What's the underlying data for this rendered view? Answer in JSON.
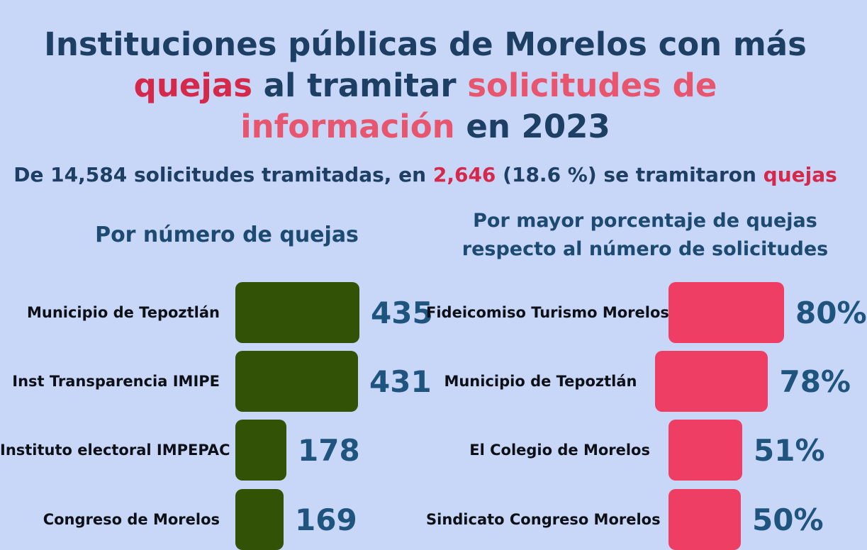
{
  "title": {
    "line1": "Instituciones públicas de Morelos con más",
    "line2_highlight": "quejas",
    "line2_mid": " al tramitar ",
    "line2_rose": "solicitudes de",
    "line3_rose": "información",
    "line3_end": " en 2023"
  },
  "subtitle": {
    "part1": "De 14,584 solicitudes tramitadas, en ",
    "highlight1": "2,646",
    "part2": " (18.6 %) se tramitaron ",
    "highlight2": "quejas"
  },
  "colors": {
    "background": "#c8d6f7",
    "title_navy": "#1d3f63",
    "title_crimson": "#d5294b",
    "title_rose": "#e8556e",
    "chart_header_navy": "#1d4a70",
    "value_label_blue": "#1e547e",
    "category_label_dark": "#0d1117",
    "green_bar": "#325206",
    "pink_bar": "#ee3e63"
  },
  "chart_data": [
    {
      "type": "bar",
      "orientation": "horizontal",
      "title": "Por número de quejas",
      "categories": [
        "Municipio de Tepoztlán",
        "Inst Transparencia IMIPE",
        "Instituto electoral IMPEPAC",
        "Congreso de Morelos"
      ],
      "values": [
        435,
        431,
        178,
        169
      ],
      "value_labels": [
        "435",
        "431",
        "178",
        "169"
      ],
      "bar_color": "#325206",
      "value_axis_max": 435,
      "grid": false,
      "legend": false
    },
    {
      "type": "bar",
      "orientation": "horizontal",
      "title": "Por mayor porcentaje de quejas respecto al número de solicitudes",
      "title_lines": [
        "Por  mayor porcentaje de quejas",
        "respecto al número de solicitudes"
      ],
      "categories": [
        "Fideicomiso Turismo Morelos",
        "Municipio de Tepoztlán",
        "El Colegio de Morelos",
        "Sindicato Congreso Morelos"
      ],
      "values": [
        80,
        78,
        51,
        50
      ],
      "value_labels": [
        "80%",
        "78%",
        "51%",
        "50%"
      ],
      "unit": "%",
      "bar_color": "#ee3e63",
      "value_axis_max": 80,
      "grid": false,
      "legend": false
    }
  ]
}
